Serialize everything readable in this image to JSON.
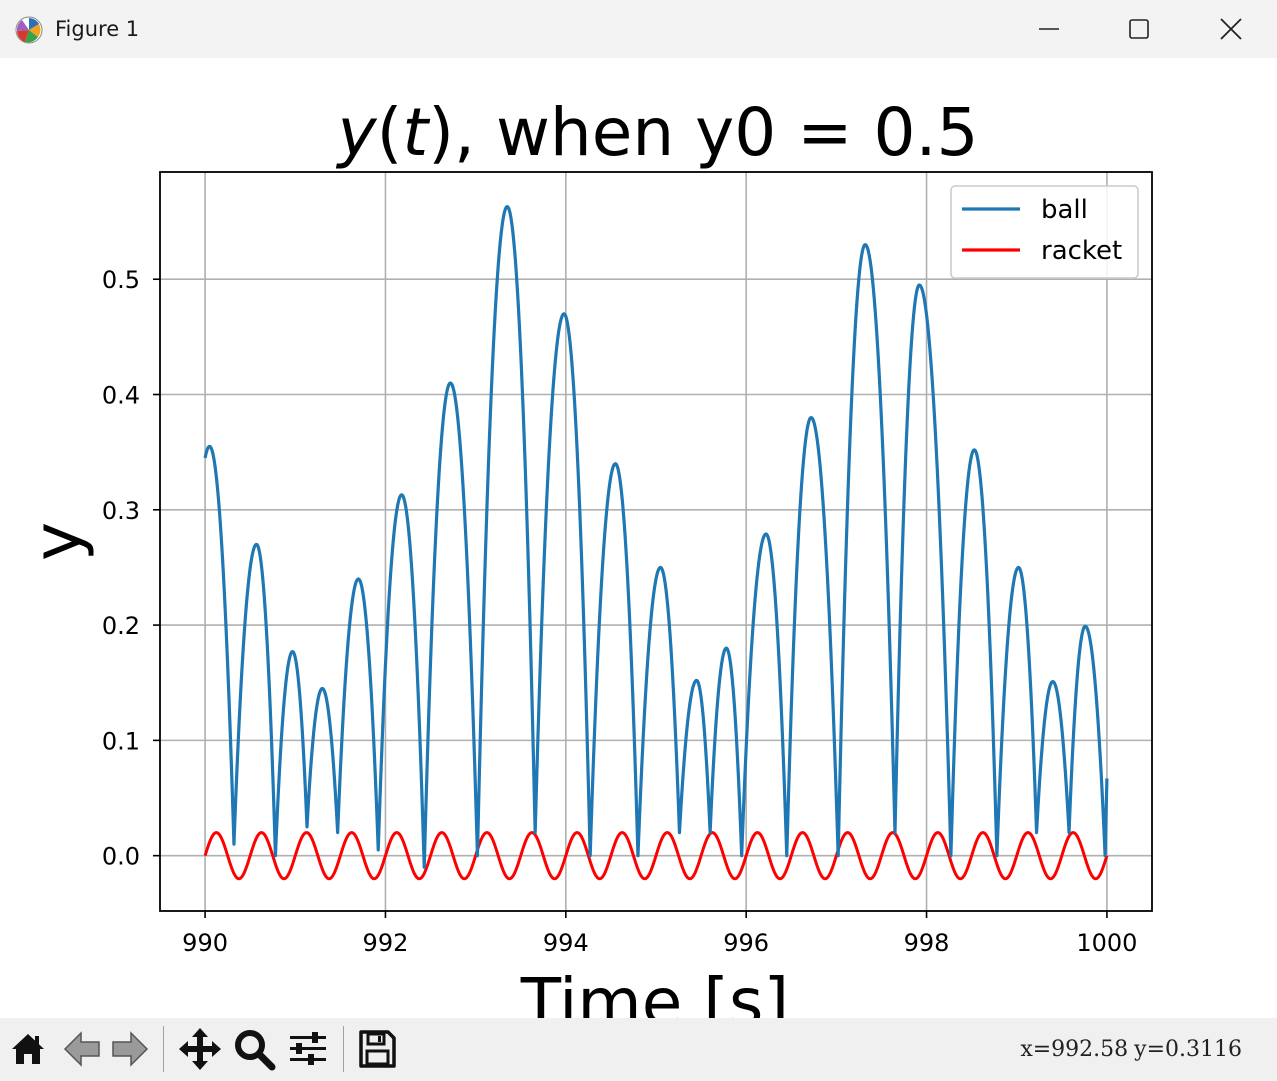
{
  "window": {
    "title": "Figure 1",
    "minimize_icon": "minimize-icon",
    "maximize_icon": "maximize-icon",
    "close_icon": "close-icon"
  },
  "toolbar": {
    "buttons": [
      "home-icon",
      "back-arrow-icon",
      "forward-arrow-icon",
      "pan-move-icon",
      "zoom-magnifier-icon",
      "configure-subplots-icon",
      "save-icon"
    ],
    "coord_x": "x=992.58",
    "coord_y": "y=0.3116"
  },
  "chart_data": {
    "type": "line",
    "title_italic_part": "y(t)",
    "title": "y(t), when y0 = 0.5",
    "title_rest": ", when y0 = 0.5",
    "xlabel": "Time [s]",
    "ylabel": "y",
    "xlim": [
      989.5,
      1000.5
    ],
    "ylim": [
      -0.048,
      0.593
    ],
    "xticks": [
      990,
      992,
      994,
      996,
      998,
      1000
    ],
    "yticks": [
      0.0,
      0.1,
      0.2,
      0.3,
      0.4,
      0.5
    ],
    "ytick_labels": [
      "0.0",
      "0.1",
      "0.2",
      "0.3",
      "0.4",
      "0.5"
    ],
    "grid": true,
    "legend_position": "top-right",
    "series": [
      {
        "name": "ball",
        "color": "#1f77b4",
        "start": [
          990.0,
          0.345
        ],
        "peaks": [
          [
            990.05,
            0.355
          ],
          [
            990.57,
            0.27
          ],
          [
            990.97,
            0.177
          ],
          [
            991.3,
            0.145
          ],
          [
            991.7,
            0.24
          ],
          [
            992.18,
            0.313
          ],
          [
            992.72,
            0.41
          ],
          [
            993.35,
            0.563
          ],
          [
            993.98,
            0.47
          ],
          [
            994.55,
            0.34
          ],
          [
            995.05,
            0.25
          ],
          [
            995.45,
            0.152
          ],
          [
            995.78,
            0.18
          ],
          [
            996.22,
            0.279
          ],
          [
            996.72,
            0.38
          ],
          [
            997.32,
            0.53
          ],
          [
            997.92,
            0.495
          ],
          [
            998.53,
            0.352
          ],
          [
            999.02,
            0.25
          ],
          [
            999.4,
            0.151
          ],
          [
            999.76,
            0.199
          ]
        ],
        "bounces": [
          [
            990.32,
            0.01
          ],
          [
            990.78,
            0.0
          ],
          [
            991.13,
            0.025
          ],
          [
            991.47,
            0.02
          ],
          [
            991.92,
            0.005
          ],
          [
            992.43,
            -0.01
          ],
          [
            993.02,
            0.0
          ],
          [
            993.66,
            0.02
          ],
          [
            994.27,
            0.0
          ],
          [
            994.8,
            0.0
          ],
          [
            995.26,
            0.02
          ],
          [
            995.6,
            0.02
          ],
          [
            995.95,
            0.0
          ],
          [
            996.45,
            0.0
          ],
          [
            997.02,
            0.0
          ],
          [
            997.65,
            0.02
          ],
          [
            998.27,
            0.0
          ],
          [
            998.78,
            0.0
          ],
          [
            999.22,
            0.02
          ],
          [
            999.58,
            0.02
          ],
          [
            999.98,
            0.0
          ]
        ],
        "end": [
          1000.0,
          0.067
        ]
      },
      {
        "name": "racket",
        "color": "#ff0000",
        "amplitude": 0.02,
        "frequency_hz": 2.0,
        "x_range": [
          990,
          1000
        ]
      }
    ]
  }
}
